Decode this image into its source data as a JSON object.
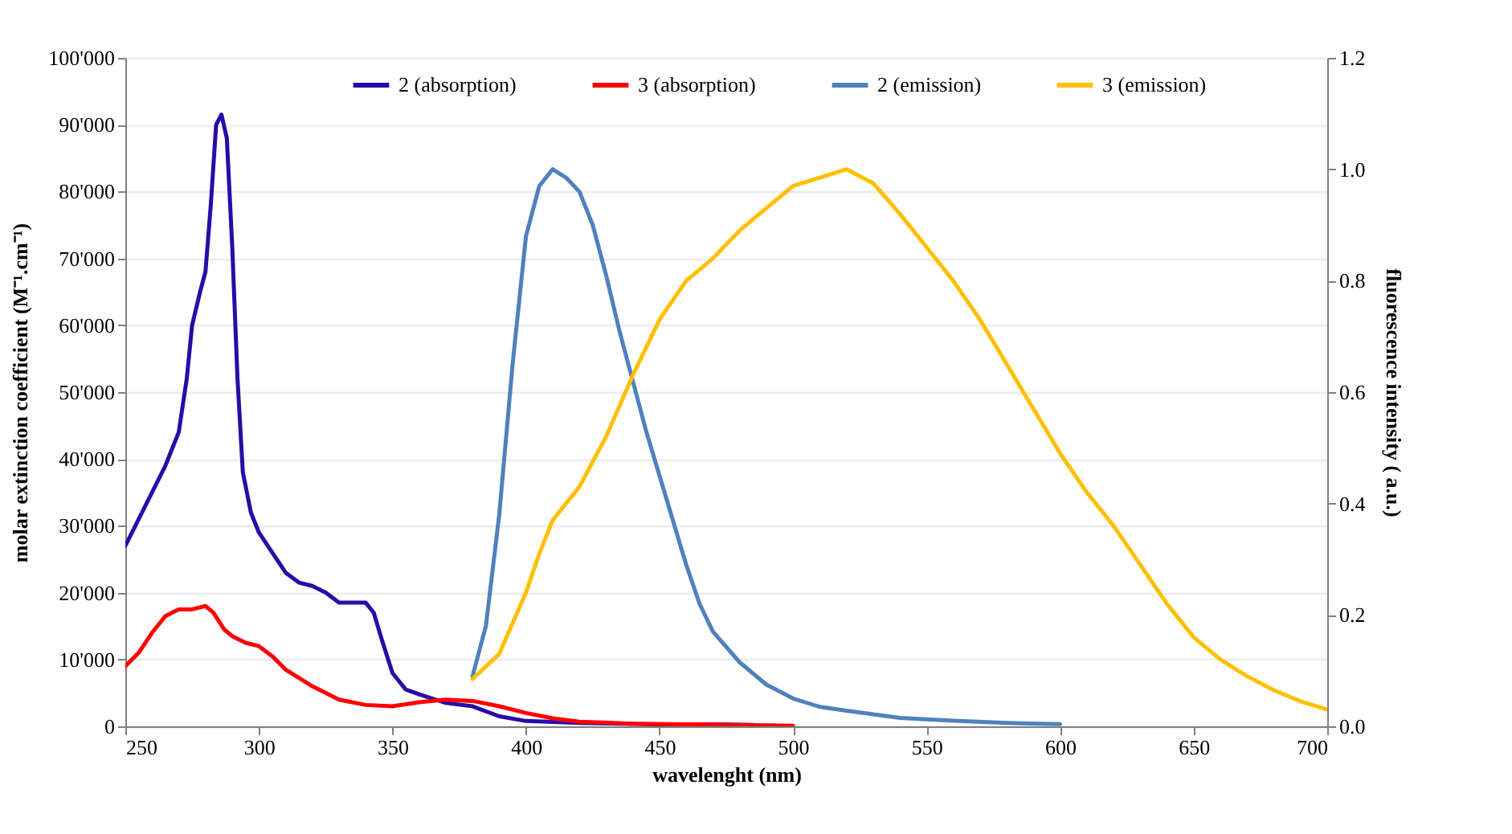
{
  "chart_data": {
    "type": "line",
    "xlabel": "wavelenght (nm)",
    "ylabel": "molar extinction coefficient (M⁻¹.cm⁻¹)",
    "y2label": "fluorescence intensity ( a.u.)",
    "xlim": [
      250,
      700
    ],
    "xticks": [
      250,
      300,
      350,
      400,
      450,
      500,
      550,
      600,
      650,
      700
    ],
    "ylim": [
      0,
      100000
    ],
    "yticks": [
      0,
      {
        "value": 10000,
        "label": "10'000"
      },
      {
        "value": 20000,
        "label": "20'000"
      },
      {
        "value": 30000,
        "label": "30'000"
      },
      {
        "value": 40000,
        "label": "40'000"
      },
      {
        "value": 50000,
        "label": "50'000"
      },
      {
        "value": 60000,
        "label": "60'000"
      },
      {
        "value": 70000,
        "label": "70'000"
      },
      {
        "value": 80000,
        "label": "80'000"
      },
      {
        "value": 90000,
        "label": "90'000"
      },
      {
        "value": 100000,
        "label": "100'000"
      }
    ],
    "y2lim": [
      0,
      1.2
    ],
    "y2ticks": [
      {
        "value": 0,
        "label": "0.0"
      },
      {
        "value": 0.2,
        "label": "0.2"
      },
      {
        "value": 0.4,
        "label": "0.4"
      },
      {
        "value": 0.6,
        "label": "0.6"
      },
      {
        "value": 0.8,
        "label": "0.8"
      },
      {
        "value": 1,
        "label": "1.0"
      },
      {
        "value": 1.2,
        "label": "1.2"
      }
    ],
    "grid": "y",
    "legend": "top",
    "series": [
      {
        "name": "2 (absorption)",
        "color": "#2a0aa8",
        "x": [
          250,
          255,
          260,
          265,
          270,
          273,
          275,
          278,
          280,
          282,
          284,
          286,
          288,
          290,
          292,
          294,
          297,
          300,
          305,
          310,
          315,
          320,
          325,
          330,
          335,
          340,
          343,
          346,
          350,
          355,
          360,
          370,
          380,
          390,
          400,
          420,
          450,
          470,
          485
        ],
        "values": [
          27000,
          31000,
          35000,
          39000,
          44000,
          52000,
          60000,
          65000,
          68000,
          78000,
          90000,
          91500,
          88000,
          72000,
          52000,
          38000,
          32000,
          29000,
          26000,
          23000,
          21500,
          21000,
          20000,
          18500,
          18500,
          18500,
          17000,
          13000,
          8000,
          5500,
          4800,
          3500,
          3000,
          1500,
          800,
          500,
          300,
          300,
          200
        ]
      },
      {
        "name": "3 (absorption)",
        "color": "#ff0000",
        "x": [
          250,
          255,
          260,
          265,
          270,
          275,
          280,
          283,
          287,
          290,
          295,
          300,
          305,
          310,
          320,
          330,
          340,
          350,
          360,
          370,
          380,
          390,
          400,
          410,
          420,
          440,
          460,
          480,
          500
        ],
        "values": [
          9000,
          11000,
          14000,
          16500,
          17500,
          17500,
          18000,
          17000,
          14500,
          13500,
          12500,
          12000,
          10500,
          8500,
          6000,
          4000,
          3200,
          3000,
          3600,
          4000,
          3800,
          3000,
          2000,
          1200,
          700,
          400,
          300,
          200,
          100
        ]
      },
      {
        "name": "2 (emission)",
        "color": "#4f81bd",
        "axis": "y2",
        "x": [
          380,
          385,
          390,
          395,
          400,
          405,
          410,
          415,
          420,
          425,
          430,
          435,
          440,
          445,
          450,
          455,
          460,
          465,
          470,
          480,
          490,
          500,
          510,
          520,
          540,
          560,
          580,
          600
        ],
        "values": [
          0.09,
          0.18,
          0.38,
          0.65,
          0.88,
          0.97,
          1.0,
          0.985,
          0.96,
          0.9,
          0.81,
          0.71,
          0.62,
          0.53,
          0.45,
          0.37,
          0.29,
          0.22,
          0.17,
          0.115,
          0.075,
          0.05,
          0.035,
          0.028,
          0.015,
          0.01,
          0.006,
          0.004
        ]
      },
      {
        "name": "3 (emission)",
        "color": "#ffc000",
        "axis": "y2",
        "x": [
          380,
          390,
          400,
          405,
          410,
          420,
          430,
          440,
          450,
          460,
          470,
          480,
          490,
          500,
          510,
          520,
          530,
          540,
          550,
          560,
          570,
          580,
          590,
          600,
          610,
          620,
          630,
          640,
          650,
          660,
          670,
          680,
          690,
          700
        ],
        "values": [
          0.085,
          0.13,
          0.24,
          0.31,
          0.37,
          0.43,
          0.52,
          0.63,
          0.73,
          0.8,
          0.84,
          0.89,
          0.93,
          0.97,
          0.985,
          1.0,
          0.975,
          0.92,
          0.86,
          0.8,
          0.73,
          0.65,
          0.57,
          0.49,
          0.42,
          0.36,
          0.29,
          0.22,
          0.16,
          0.12,
          0.09,
          0.065,
          0.045,
          0.03
        ]
      }
    ]
  }
}
